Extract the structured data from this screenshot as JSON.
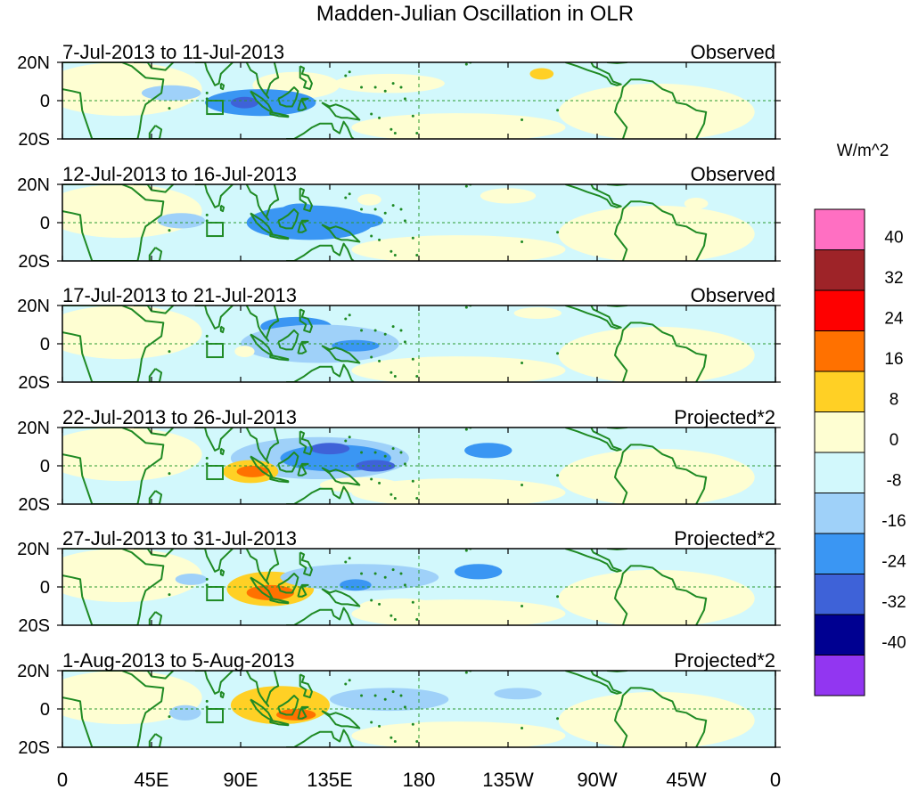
{
  "title": "Madden-Julian Oscillation in OLR",
  "lat_labels": [
    "20N",
    "0",
    "20S"
  ],
  "lon_labels": [
    "0",
    "45E",
    "90E",
    "135E",
    "180",
    "135W",
    "90W",
    "45W",
    "0"
  ],
  "panels": [
    {
      "period": "7-Jul-2013 to 11-Jul-2013",
      "kind": "Observed",
      "features": [
        {
          "lon": 118,
          "lat": 8,
          "rx": 22,
          "ry": 7,
          "value": 8
        },
        {
          "lon": 165,
          "lat": 9,
          "rx": 28,
          "ry": 5,
          "value": 8
        },
        {
          "lon": 242,
          "lat": 14,
          "rx": 6,
          "ry": 3,
          "value": 16
        },
        {
          "lon": 100,
          "lat": -1,
          "rx": 28,
          "ry": 7,
          "value": -16
        },
        {
          "lon": 92,
          "lat": -1,
          "rx": 7,
          "ry": 3,
          "value": -24
        },
        {
          "lon": 55,
          "lat": 4,
          "rx": 15,
          "ry": 4,
          "value": -8
        }
      ]
    },
    {
      "period": "12-Jul-2013 to 16-Jul-2013",
      "kind": "Observed",
      "features": [
        {
          "lon": 125,
          "lat": 0,
          "rx": 32,
          "ry": 9,
          "value": -16
        },
        {
          "lon": 120,
          "lat": 6,
          "rx": 10,
          "ry": 4,
          "value": -16
        },
        {
          "lon": 150,
          "lat": 1,
          "rx": 12,
          "ry": 4,
          "value": -16
        },
        {
          "lon": 60,
          "lat": 1,
          "rx": 12,
          "ry": 4,
          "value": -8
        },
        {
          "lon": 225,
          "lat": 14,
          "rx": 14,
          "ry": 4,
          "value": 8
        },
        {
          "lon": 155,
          "lat": 12,
          "rx": 6,
          "ry": 3,
          "value": 8
        },
        {
          "lon": 320,
          "lat": 10,
          "rx": 6,
          "ry": 3,
          "value": 8
        }
      ]
    },
    {
      "period": "17-Jul-2013 to 21-Jul-2013",
      "kind": "Observed",
      "features": [
        {
          "lon": 118,
          "lat": 9,
          "rx": 18,
          "ry": 5,
          "value": -16
        },
        {
          "lon": 130,
          "lat": 0,
          "rx": 40,
          "ry": 10,
          "value": -8
        },
        {
          "lon": 148,
          "lat": -1,
          "rx": 12,
          "ry": 3,
          "value": -16
        },
        {
          "lon": 92,
          "lat": -4,
          "rx": 5,
          "ry": 3,
          "value": 8
        },
        {
          "lon": 240,
          "lat": 16,
          "rx": 12,
          "ry": 3,
          "value": 8
        }
      ]
    },
    {
      "period": "22-Jul-2013 to 26-Jul-2013",
      "kind": "Projected*2",
      "features": [
        {
          "lon": 130,
          "lat": 4,
          "rx": 45,
          "ry": 11,
          "value": -8
        },
        {
          "lon": 138,
          "lat": 4,
          "rx": 28,
          "ry": 7,
          "value": -16
        },
        {
          "lon": 135,
          "lat": 9,
          "rx": 10,
          "ry": 3,
          "value": -24
        },
        {
          "lon": 158,
          "lat": 0,
          "rx": 10,
          "ry": 3,
          "value": -24
        },
        {
          "lon": 215,
          "lat": 8,
          "rx": 12,
          "ry": 4,
          "value": -16
        },
        {
          "lon": 95,
          "lat": -3,
          "rx": 14,
          "ry": 6,
          "value": 16
        },
        {
          "lon": 96,
          "lat": -3,
          "rx": 8,
          "ry": 3,
          "value": 24
        },
        {
          "lon": 40,
          "lat": 0,
          "rx": 15,
          "ry": 6,
          "value": 8
        },
        {
          "lon": 150,
          "lat": -10,
          "rx": 20,
          "ry": 4,
          "value": 8
        },
        {
          "lon": 280,
          "lat": -2,
          "rx": 10,
          "ry": 5,
          "value": 8
        }
      ]
    },
    {
      "period": "27-Jul-2013 to 31-Jul-2013",
      "kind": "Projected*2",
      "features": [
        {
          "lon": 105,
          "lat": -1,
          "rx": 22,
          "ry": 9,
          "value": 16
        },
        {
          "lon": 105,
          "lat": -3,
          "rx": 12,
          "ry": 4,
          "value": 24
        },
        {
          "lon": 38,
          "lat": 4,
          "rx": 10,
          "ry": 6,
          "value": 8
        },
        {
          "lon": 150,
          "lat": 5,
          "rx": 40,
          "ry": 7,
          "value": -8
        },
        {
          "lon": 210,
          "lat": 8,
          "rx": 12,
          "ry": 4,
          "value": -16
        },
        {
          "lon": 148,
          "lat": 1,
          "rx": 8,
          "ry": 3,
          "value": -16
        },
        {
          "lon": 65,
          "lat": 4,
          "rx": 8,
          "ry": 3,
          "value": -8
        },
        {
          "lon": 170,
          "lat": -10,
          "rx": 20,
          "ry": 4,
          "value": 8
        },
        {
          "lon": 283,
          "lat": -1,
          "rx": 10,
          "ry": 5,
          "value": 8
        }
      ]
    },
    {
      "period": "1-Aug-2013 to 5-Aug-2013",
      "kind": "Projected*2",
      "features": [
        {
          "lon": 110,
          "lat": 2,
          "rx": 25,
          "ry": 10,
          "value": 16
        },
        {
          "lon": 118,
          "lat": -3,
          "rx": 10,
          "ry": 3,
          "value": 24
        },
        {
          "lon": 165,
          "lat": 5,
          "rx": 30,
          "ry": 6,
          "value": -8
        },
        {
          "lon": 230,
          "lat": 8,
          "rx": 12,
          "ry": 3,
          "value": -8
        },
        {
          "lon": 52,
          "lat": 0,
          "rx": 8,
          "ry": 3,
          "value": 8
        },
        {
          "lon": 62,
          "lat": -2,
          "rx": 8,
          "ry": 4,
          "value": -8
        },
        {
          "lon": 288,
          "lat": 1,
          "rx": 10,
          "ry": 5,
          "value": 8
        }
      ]
    }
  ],
  "colorbar": {
    "unit": "W/m^2",
    "tick_labels": [
      "40",
      "32",
      "24",
      "16",
      "8",
      "0",
      "-8",
      "-16",
      "-24",
      "-32",
      "-40"
    ],
    "colors": [
      "#ff6fc2",
      "#9e2328",
      "#fe0000",
      "#ff7100",
      "#ffd025",
      "#fefed2",
      "#d2f8fc",
      "#9fd1f9",
      "#3a96f3",
      "#3e62d8",
      "#000091",
      "#9236f1"
    ],
    "levels": [
      -40,
      -32,
      -24,
      -16,
      -8,
      0,
      8,
      16,
      24,
      32,
      40
    ]
  },
  "line_colors": {
    "coast": "#1f8a24",
    "grid": "#2a9a2f"
  }
}
